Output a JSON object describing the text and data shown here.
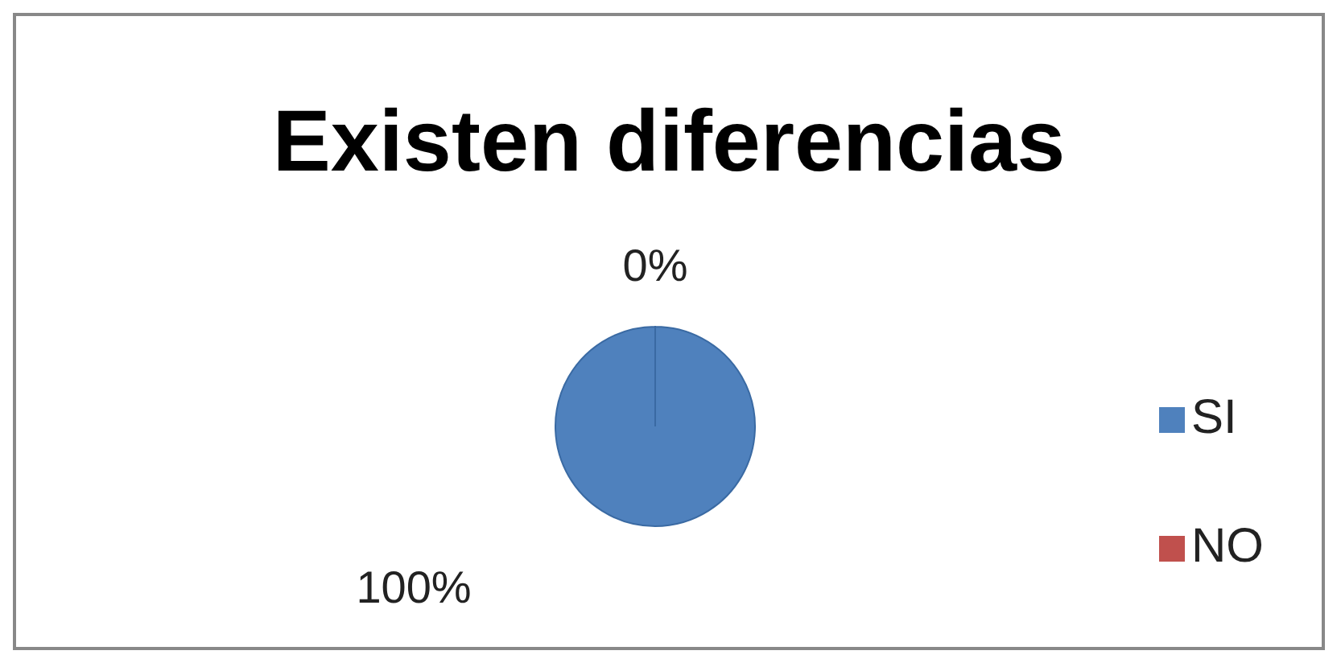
{
  "chart_data": {
    "type": "pie",
    "title": "Existen diferencias",
    "categories": [
      "SI",
      "NO"
    ],
    "values": [
      100,
      0
    ],
    "colors": [
      "#4f81bd",
      "#c0504d"
    ],
    "value_labels": [
      "100%",
      "0%"
    ],
    "legend": "right"
  }
}
